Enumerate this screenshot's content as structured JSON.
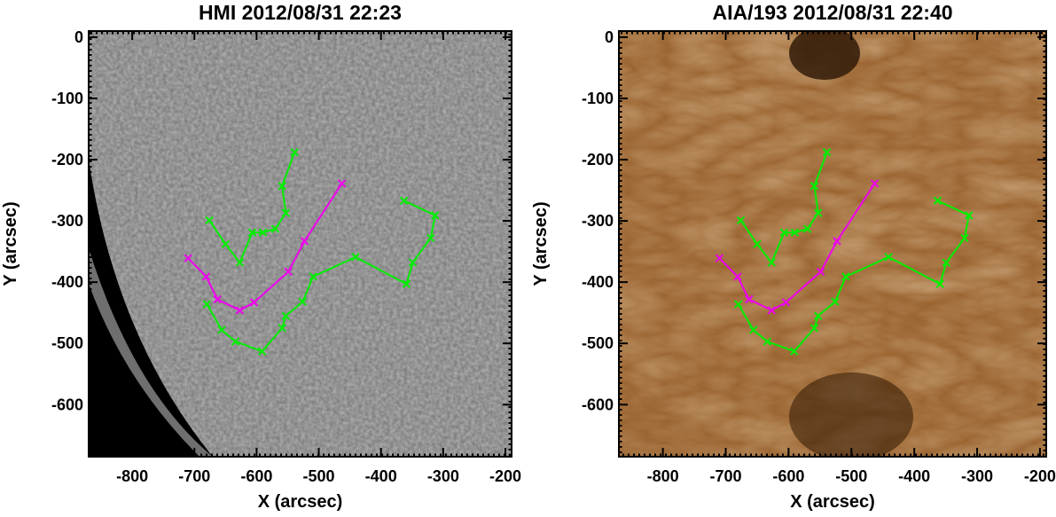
{
  "chart_data": [
    {
      "type": "line",
      "title": "HMI 2012/08/31 22:23",
      "x_label": "X (arcsec)",
      "y_label": "Y (arcsec)",
      "xlim": [
        -870,
        -190
      ],
      "ylim": [
        -685,
        10
      ],
      "xticks": [
        -800,
        -700,
        -600,
        -500,
        -400,
        -300,
        -200
      ],
      "yticks": [
        0,
        -100,
        -200,
        -300,
        -400,
        -500,
        -600
      ],
      "series": [
        {
          "color": "#00ee00",
          "x": [
            -539,
            -559,
            -553,
            -570,
            -590,
            -607,
            -627,
            -650,
            -676
          ],
          "values": [
            -188,
            -243,
            -287,
            -313,
            -319,
            -319,
            -368,
            -338,
            -299
          ]
        },
        {
          "color": "#ee00ee",
          "x": [
            -710,
            -681,
            -663,
            -627,
            -604,
            -549,
            -523,
            -463
          ],
          "values": [
            -361,
            -391,
            -428,
            -446,
            -433,
            -383,
            -333,
            -239
          ]
        },
        {
          "color": "#00ee00",
          "x": [
            -680,
            -656,
            -634,
            -591,
            -559,
            -553,
            -526,
            -509,
            -441,
            -359,
            -349,
            -320,
            -313,
            -363
          ],
          "values": [
            -436,
            -478,
            -497,
            -513,
            -475,
            -455,
            -432,
            -391,
            -359,
            -403,
            -368,
            -328,
            -291,
            -267
          ]
        }
      ]
    },
    {
      "type": "line",
      "title": "AIA/193 2012/08/31 22:40",
      "x_label": "X (arcsec)",
      "y_label": "Y (arcsec)",
      "xlim": [
        -870,
        -190
      ],
      "ylim": [
        -685,
        10
      ],
      "xticks": [
        -800,
        -700,
        -600,
        -500,
        -400,
        -300,
        -200
      ],
      "yticks": [
        0,
        -100,
        -200,
        -300,
        -400,
        -500,
        -600
      ],
      "series": [
        {
          "color": "#00ee00",
          "x": [
            -539,
            -559,
            -553,
            -570,
            -590,
            -607,
            -627,
            -650,
            -676
          ],
          "values": [
            -188,
            -243,
            -287,
            -313,
            -319,
            -319,
            -368,
            -338,
            -299
          ]
        },
        {
          "color": "#ee00ee",
          "x": [
            -710,
            -681,
            -663,
            -627,
            -604,
            -549,
            -523,
            -463
          ],
          "values": [
            -361,
            -391,
            -428,
            -446,
            -433,
            -383,
            -333,
            -239
          ]
        },
        {
          "color": "#00ee00",
          "x": [
            -680,
            -656,
            -634,
            -591,
            -559,
            -553,
            -526,
            -509,
            -441,
            -359,
            -349,
            -320,
            -313,
            -363
          ],
          "values": [
            -436,
            -478,
            -497,
            -513,
            -475,
            -455,
            -432,
            -391,
            -359,
            -403,
            -368,
            -328,
            -291,
            -267
          ]
        }
      ]
    }
  ]
}
